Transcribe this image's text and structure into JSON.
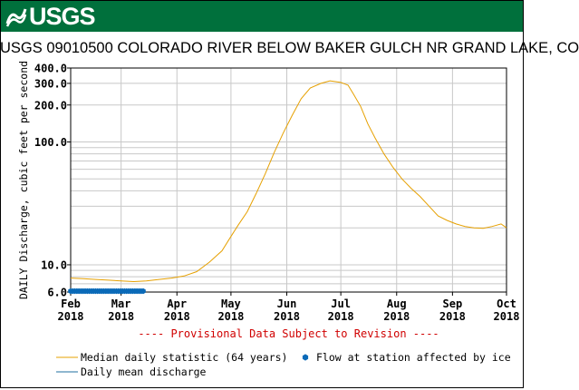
{
  "header": {
    "logo_text": "USGS"
  },
  "chart_data": {
    "type": "line",
    "title": "USGS 09010500 COLORADO RIVER BELOW BAKER GULCH NR GRAND LAKE, CO",
    "ylabel": "DAILY Discharge, cubic feet per second",
    "yscale": "log",
    "ylim": [
      6,
      400
    ],
    "yticks": [
      {
        "value": 6,
        "label": "6.0"
      },
      {
        "value": 10,
        "label": "10.0"
      },
      {
        "value": 100,
        "label": "100.0"
      },
      {
        "value": 200,
        "label": "200.0"
      },
      {
        "value": 300,
        "label": "300.0"
      },
      {
        "value": 400,
        "label": "400.0"
      }
    ],
    "ygrid_minor": [
      7,
      8,
      9,
      20,
      30,
      40,
      50,
      60,
      70,
      80,
      90
    ],
    "xlim": [
      "2018-02-01",
      "2018-10-01"
    ],
    "xticks": [
      {
        "date": "2018-02-01",
        "label_month": "Feb",
        "label_year": "2018"
      },
      {
        "date": "2018-03-01",
        "label_month": "Mar",
        "label_year": "2018"
      },
      {
        "date": "2018-04-01",
        "label_month": "Apr",
        "label_year": "2018"
      },
      {
        "date": "2018-05-01",
        "label_month": "May",
        "label_year": "2018"
      },
      {
        "date": "2018-06-01",
        "label_month": "Jun",
        "label_year": "2018"
      },
      {
        "date": "2018-07-01",
        "label_month": "Jul",
        "label_year": "2018"
      },
      {
        "date": "2018-08-01",
        "label_month": "Aug",
        "label_year": "2018"
      },
      {
        "date": "2018-09-01",
        "label_month": "Sep",
        "label_year": "2018"
      },
      {
        "date": "2018-10-01",
        "label_month": "Oct",
        "label_year": "2018"
      }
    ],
    "grid": true,
    "provisional_note": "---- Provisional Data Subject to Revision ----",
    "series": [
      {
        "name": "Median daily statistic (64 years)",
        "color": "#e6a000",
        "points": [
          [
            "2018-02-01",
            7.8
          ],
          [
            "2018-02-08",
            7.7
          ],
          [
            "2018-02-15",
            7.6
          ],
          [
            "2018-02-22",
            7.5
          ],
          [
            "2018-03-01",
            7.4
          ],
          [
            "2018-03-08",
            7.3
          ],
          [
            "2018-03-15",
            7.4
          ],
          [
            "2018-03-22",
            7.6
          ],
          [
            "2018-03-29",
            7.8
          ],
          [
            "2018-04-05",
            8.1
          ],
          [
            "2018-04-12",
            8.8
          ],
          [
            "2018-04-19",
            10.5
          ],
          [
            "2018-04-26",
            13
          ],
          [
            "2018-05-01",
            17
          ],
          [
            "2018-05-05",
            21
          ],
          [
            "2018-05-10",
            27
          ],
          [
            "2018-05-15",
            38
          ],
          [
            "2018-05-20",
            55
          ],
          [
            "2018-05-25",
            82
          ],
          [
            "2018-05-30",
            118
          ],
          [
            "2018-06-04",
            165
          ],
          [
            "2018-06-09",
            225
          ],
          [
            "2018-06-14",
            275
          ],
          [
            "2018-06-20",
            300
          ],
          [
            "2018-06-25",
            315
          ],
          [
            "2018-07-01",
            305
          ],
          [
            "2018-07-05",
            290
          ],
          [
            "2018-07-08",
            245
          ],
          [
            "2018-07-12",
            195
          ],
          [
            "2018-07-16",
            140
          ],
          [
            "2018-07-20",
            108
          ],
          [
            "2018-07-25",
            80
          ],
          [
            "2018-07-30",
            62
          ],
          [
            "2018-08-04",
            50
          ],
          [
            "2018-08-09",
            42
          ],
          [
            "2018-08-14",
            36
          ],
          [
            "2018-08-19",
            30
          ],
          [
            "2018-08-24",
            25
          ],
          [
            "2018-08-29",
            23
          ],
          [
            "2018-09-03",
            21.5
          ],
          [
            "2018-09-08",
            20.5
          ],
          [
            "2018-09-13",
            20
          ],
          [
            "2018-09-18",
            19.8
          ],
          [
            "2018-09-23",
            20.5
          ],
          [
            "2018-09-28",
            21.5
          ],
          [
            "2018-10-01",
            20
          ]
        ]
      },
      {
        "name": "Daily mean discharge",
        "color": "#1f6f9f",
        "points": [
          [
            "2018-02-01",
            6.1
          ],
          [
            "2018-03-14",
            6.1
          ]
        ]
      },
      {
        "name": "Flow at station affected by ice",
        "color": "#0a6ab8",
        "marker": "hexagon",
        "start": "2018-02-01",
        "end": "2018-03-14",
        "value": 6.1
      }
    ]
  },
  "legend": {
    "median_label": "Median daily statistic (64 years)",
    "ice_label": "Flow at station affected by ice",
    "mean_label": "Daily mean discharge"
  }
}
